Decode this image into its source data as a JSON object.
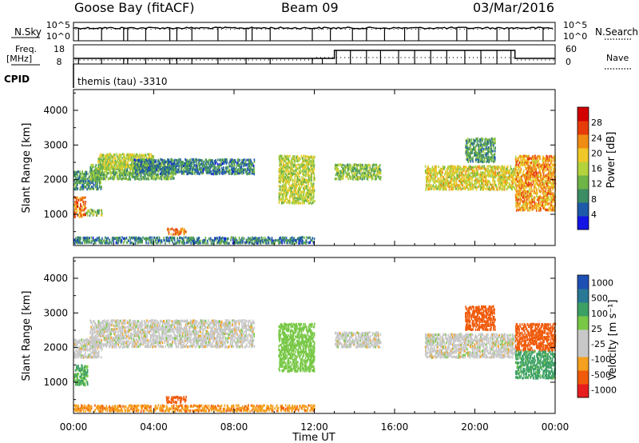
{
  "header": {
    "station": "Goose Bay (fitACF)",
    "beam": "Beam 09",
    "date": "03/Mar/2016"
  },
  "noise_panel": {
    "left_label": "N.Sky",
    "left_ticks": [
      "10^5",
      "10^0"
    ],
    "right_ticks": [
      "10^5",
      "10^0"
    ],
    "right_label": "N.Search",
    "step_times_h": [
      0.25,
      1.4,
      2.5,
      2.7,
      3.6,
      4.8,
      5.15,
      5.9,
      7.2,
      8.6,
      8.9,
      9.8,
      11.9,
      12.8,
      13.9,
      14.6,
      15.5,
      16.5,
      17.2,
      19.1,
      19.6,
      21.1,
      21.7,
      23.4
    ]
  },
  "freq_panel": {
    "left_label_line1": "Freq.",
    "left_label_line2": "[MHz]",
    "left_ticks": [
      "18",
      "8"
    ],
    "right_ticks": [
      "60",
      "0"
    ],
    "right_label": "Nave",
    "cpid_label": "CPID",
    "cpid_value": "themis (tau) -3310",
    "nave_high_start_h": 11.9,
    "nave_high_end_h": 21.9,
    "freq_high_start_h": 13.0,
    "freq_high_end_h": 22.0,
    "dip_times_h": [
      0.25,
      1.4,
      2.5,
      2.7,
      3.6,
      4.8,
      5.15,
      5.9,
      7.2,
      8.6,
      9.8,
      11.9,
      12.4,
      13.1,
      13.8,
      14.6,
      15.3,
      16.2,
      17.0,
      17.8,
      18.6,
      19.5,
      20.3,
      21.1,
      21.8
    ]
  },
  "x_axis": {
    "label": "Time UT",
    "ticks": [
      "00:00",
      "04:00",
      "08:00",
      "12:00",
      "16:00",
      "20:00",
      "00:00"
    ],
    "range_h": [
      0,
      24
    ]
  },
  "colors": {
    "power": [
      "#1414e6",
      "#1e5aa8",
      "#3c8c64",
      "#6eb446",
      "#b4d23c",
      "#f0c828",
      "#f08c14",
      "#e63c0a",
      "#d20000"
    ],
    "velocity": [
      "#e61e1e",
      "#f05a0a",
      "#f5a01e",
      "#c8c8c8",
      "#c8c8c8",
      "#78c846",
      "#3ca064",
      "#287896",
      "#1e50b4"
    ]
  },
  "chart_data": [
    {
      "type": "heatmap",
      "ylabel": "Slant Range [km]",
      "yticks": [
        1000,
        2000,
        3000,
        4000
      ],
      "ylim": [
        100,
        4600
      ],
      "xlim": [
        0,
        24
      ],
      "colorbar": {
        "label": "Power [dB]",
        "ticks": [
          "4",
          "8",
          "12",
          "16",
          "20",
          "24",
          "28"
        ],
        "range": [
          0,
          32
        ]
      },
      "regions": [
        {
          "t0": 0.0,
          "t1": 0.6,
          "r0": 900,
          "r1": 1500,
          "value": 24
        },
        {
          "t0": 0.0,
          "t1": 1.4,
          "r0": 1700,
          "r1": 2250,
          "value": 10
        },
        {
          "t0": 0.6,
          "t1": 1.4,
          "r0": 950,
          "r1": 1150,
          "value": 14
        },
        {
          "t0": 0.8,
          "t1": 5.0,
          "r0": 2000,
          "r1": 2450,
          "value": 12
        },
        {
          "t0": 1.2,
          "t1": 4.0,
          "r0": 2300,
          "r1": 2750,
          "value": 16
        },
        {
          "t0": 3.0,
          "t1": 9.0,
          "r0": 2150,
          "r1": 2600,
          "value": 8
        },
        {
          "t0": 4.6,
          "t1": 5.6,
          "r0": 400,
          "r1": 600,
          "value": 24
        },
        {
          "t0": 0.0,
          "t1": 12.0,
          "r0": 150,
          "r1": 350,
          "value": 8
        },
        {
          "t0": 10.2,
          "t1": 12.0,
          "r0": 1300,
          "r1": 2700,
          "value": 16
        },
        {
          "t0": 13.0,
          "t1": 15.3,
          "r0": 2000,
          "r1": 2450,
          "value": 14
        },
        {
          "t0": 17.5,
          "t1": 22.0,
          "r0": 1700,
          "r1": 2400,
          "value": 18
        },
        {
          "t0": 19.5,
          "t1": 21.0,
          "r0": 2500,
          "r1": 3200,
          "value": 10
        },
        {
          "t0": 22.0,
          "t1": 24.0,
          "r0": 1100,
          "r1": 2700,
          "value": 22
        }
      ]
    },
    {
      "type": "heatmap",
      "ylabel": "Slant Range [km]",
      "yticks": [
        1000,
        2000,
        3000,
        4000
      ],
      "ylim": [
        100,
        4600
      ],
      "xlim": [
        0,
        24
      ],
      "colorbar": {
        "label": "Velocity [m s⁻¹]",
        "ticks": [
          "1000",
          "500",
          "100",
          "25",
          "-25",
          "-100",
          "-500",
          "-1000"
        ]
      },
      "regions": [
        {
          "t0": 0.0,
          "t1": 0.7,
          "r0": 900,
          "r1": 1500,
          "value": 120
        },
        {
          "t0": 0.0,
          "t1": 1.4,
          "r0": 1700,
          "r1": 2250,
          "value": 0
        },
        {
          "t0": 0.8,
          "t1": 9.0,
          "r0": 2000,
          "r1": 2800,
          "value": 0
        },
        {
          "t0": 4.6,
          "t1": 5.6,
          "r0": 400,
          "r1": 600,
          "value": -250
        },
        {
          "t0": 0.0,
          "t1": 12.0,
          "r0": 150,
          "r1": 350,
          "value": -80
        },
        {
          "t0": 10.2,
          "t1": 12.0,
          "r0": 1300,
          "r1": 2700,
          "value": 60
        },
        {
          "t0": 13.0,
          "t1": 15.3,
          "r0": 2000,
          "r1": 2450,
          "value": 0
        },
        {
          "t0": 17.5,
          "t1": 22.0,
          "r0": 1700,
          "r1": 2400,
          "value": 0
        },
        {
          "t0": 19.5,
          "t1": 21.0,
          "r0": 2500,
          "r1": 3200,
          "value": -200
        },
        {
          "t0": 22.0,
          "t1": 24.0,
          "r0": 1900,
          "r1": 2700,
          "value": -250
        },
        {
          "t0": 22.0,
          "t1": 24.0,
          "r0": 1100,
          "r1": 1900,
          "value": 150
        }
      ]
    }
  ]
}
